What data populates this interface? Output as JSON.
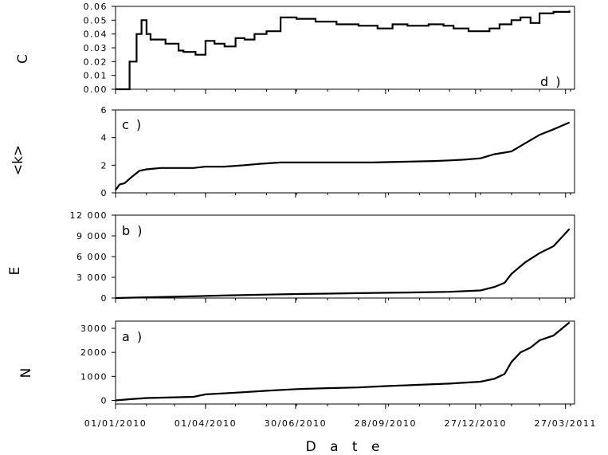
{
  "chart_data": [
    {
      "type": "line",
      "panel_label": "d )",
      "ylabel": "C",
      "ylim": [
        0,
        0.06
      ],
      "yticks": [
        0.0,
        0.01,
        0.02,
        0.03,
        0.04,
        0.05,
        0.06
      ],
      "ytick_labels": [
        "0.00",
        "0.01",
        "0.02",
        "0.03",
        "0.04",
        "0.05",
        "0.06"
      ],
      "step": true,
      "series": [
        {
          "x": [
            "2010-01-01",
            "2010-01-08",
            "2010-01-15",
            "2010-01-22",
            "2010-01-27",
            "2010-02-01",
            "2010-02-05",
            "2010-02-20",
            "2010-03-05",
            "2010-03-10",
            "2010-03-22",
            "2010-04-01",
            "2010-04-10",
            "2010-04-20",
            "2010-05-01",
            "2010-05-10",
            "2010-05-20",
            "2010-06-01",
            "2010-06-15",
            "2010-07-01",
            "2010-07-20",
            "2010-08-10",
            "2010-09-01",
            "2010-09-20",
            "2010-10-05",
            "2010-10-20",
            "2010-11-10",
            "2010-11-25",
            "2010-12-05",
            "2010-12-20",
            "2011-01-01",
            "2011-01-10",
            "2011-01-20",
            "2011-02-01",
            "2011-02-10",
            "2011-02-20",
            "2011-03-01",
            "2011-03-15",
            "2011-03-31"
          ],
          "values": [
            0.0,
            0.0,
            0.02,
            0.04,
            0.05,
            0.04,
            0.036,
            0.033,
            0.028,
            0.027,
            0.025,
            0.035,
            0.033,
            0.031,
            0.037,
            0.036,
            0.04,
            0.042,
            0.052,
            0.051,
            0.049,
            0.047,
            0.046,
            0.044,
            0.047,
            0.046,
            0.047,
            0.046,
            0.044,
            0.042,
            0.042,
            0.044,
            0.047,
            0.05,
            0.052,
            0.048,
            0.055,
            0.056,
            0.057
          ]
        }
      ]
    },
    {
      "type": "line",
      "panel_label": "c )",
      "ylabel": "<k>",
      "ylim": [
        0,
        6
      ],
      "yticks": [
        0,
        2,
        4,
        6
      ],
      "ytick_labels": [
        "0",
        "2",
        "4",
        "6"
      ],
      "step": false,
      "series": [
        {
          "x": [
            "2010-01-01",
            "2010-01-05",
            "2010-01-10",
            "2010-01-18",
            "2010-01-25",
            "2010-02-01",
            "2010-02-15",
            "2010-03-01",
            "2010-03-20",
            "2010-04-01",
            "2010-04-20",
            "2010-05-10",
            "2010-05-25",
            "2010-06-15",
            "2010-07-15",
            "2010-08-15",
            "2010-09-15",
            "2010-10-15",
            "2010-11-15",
            "2010-12-01",
            "2010-12-15",
            "2011-01-01",
            "2011-01-15",
            "2011-02-01",
            "2011-02-15",
            "2011-03-01",
            "2011-03-15",
            "2011-03-31"
          ],
          "values": [
            0.2,
            0.6,
            0.7,
            1.2,
            1.6,
            1.7,
            1.8,
            1.8,
            1.8,
            1.9,
            1.9,
            2.0,
            2.1,
            2.2,
            2.2,
            2.2,
            2.2,
            2.25,
            2.3,
            2.35,
            2.4,
            2.5,
            2.8,
            3.0,
            3.6,
            4.2,
            4.6,
            5.1
          ]
        }
      ]
    },
    {
      "type": "line",
      "panel_label": "b )",
      "ylabel": "E",
      "ylim": [
        0,
        12000
      ],
      "yticks": [
        0,
        3000,
        6000,
        9000,
        12000
      ],
      "ytick_labels": [
        "0",
        "3 000",
        "6 000",
        "9 000",
        "12 000"
      ],
      "step": false,
      "series": [
        {
          "x": [
            "2010-01-01",
            "2010-02-01",
            "2010-03-01",
            "2010-04-01",
            "2010-05-01",
            "2010-06-01",
            "2010-07-01",
            "2010-08-01",
            "2010-09-01",
            "2010-10-01",
            "2010-11-01",
            "2010-12-01",
            "2011-01-01",
            "2011-01-15",
            "2011-01-25",
            "2011-02-01",
            "2011-02-15",
            "2011-03-01",
            "2011-03-15",
            "2011-03-31"
          ],
          "values": [
            0,
            100,
            200,
            300,
            400,
            500,
            580,
            640,
            700,
            760,
            820,
            900,
            1100,
            1600,
            2200,
            3500,
            5200,
            6500,
            7500,
            10000
          ]
        }
      ]
    },
    {
      "type": "line",
      "panel_label": "a )",
      "ylabel": "N",
      "ylim": [
        -150,
        3300
      ],
      "yticks": [
        0,
        1000,
        2000,
        3000
      ],
      "ytick_labels": [
        "0",
        "1000",
        "2000",
        "3000"
      ],
      "step": false,
      "series": [
        {
          "x": [
            "2010-01-01",
            "2010-01-15",
            "2010-02-01",
            "2010-03-01",
            "2010-03-20",
            "2010-04-01",
            "2010-05-01",
            "2010-06-01",
            "2010-07-01",
            "2010-08-01",
            "2010-09-01",
            "2010-10-01",
            "2010-11-01",
            "2010-12-01",
            "2011-01-01",
            "2011-01-15",
            "2011-01-25",
            "2011-02-01",
            "2011-02-10",
            "2011-02-20",
            "2011-03-01",
            "2011-03-15",
            "2011-03-31"
          ],
          "values": [
            0,
            50,
            100,
            130,
            150,
            250,
            320,
            400,
            470,
            510,
            540,
            600,
            650,
            700,
            780,
            900,
            1100,
            1600,
            2000,
            2200,
            2500,
            2700,
            3250
          ]
        }
      ]
    }
  ],
  "x_axis": {
    "label": "D a t e",
    "range": [
      "2010-01-01",
      "2011-04-05"
    ],
    "ticks": [
      "2010-01-01",
      "2010-04-01",
      "2010-06-30",
      "2010-09-28",
      "2010-12-27",
      "2011-03-27"
    ],
    "tick_labels": [
      "01/01/2010",
      "01/04/2010",
      "30/06/2010",
      "28/09/2010",
      "27/12/2010",
      "27/03/2011"
    ]
  }
}
